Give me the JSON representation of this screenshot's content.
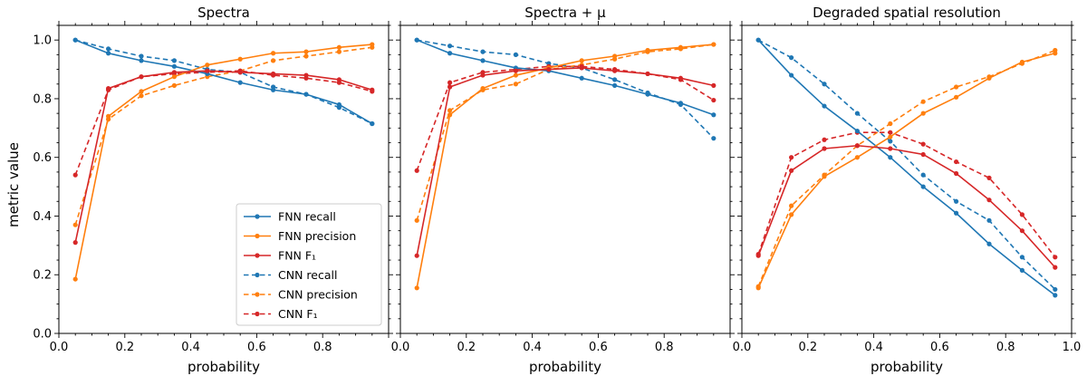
{
  "figure": {
    "ylabel": "metric value"
  },
  "legend": [
    {
      "label": "FNN recall",
      "color": "#1f77b4",
      "dash": false
    },
    {
      "label": "FNN precision",
      "color": "#ff7f0e",
      "dash": false
    },
    {
      "label": "FNN F₁",
      "color": "#d62728",
      "dash": false
    },
    {
      "label": "CNN recall",
      "color": "#1f77b4",
      "dash": true
    },
    {
      "label": "CNN precision",
      "color": "#ff7f0e",
      "dash": true
    },
    {
      "label": "CNN F₁",
      "color": "#d62728",
      "dash": true
    }
  ],
  "chart_data": [
    {
      "type": "line",
      "title": "Spectra",
      "xlabel": "probability",
      "ylabel": "metric value",
      "xlim": [
        0.0,
        1.0
      ],
      "ylim": [
        0.0,
        1.05
      ],
      "xticks": [
        "0.0",
        "0.2",
        "0.4",
        "0.6",
        "0.8"
      ],
      "yticks": [
        "0.0",
        "0.2",
        "0.4",
        "0.6",
        "0.8",
        "1.0"
      ],
      "x": [
        0.05,
        0.15,
        0.25,
        0.35,
        0.45,
        0.55,
        0.65,
        0.75,
        0.85,
        0.95
      ],
      "series": [
        {
          "name": "FNN recall",
          "color": "#1f77b4",
          "dash": false,
          "values": [
            1.0,
            0.955,
            0.93,
            0.91,
            0.885,
            0.855,
            0.83,
            0.815,
            0.78,
            0.715
          ]
        },
        {
          "name": "FNN precision",
          "color": "#ff7f0e",
          "dash": false,
          "values": [
            0.185,
            0.74,
            0.825,
            0.875,
            0.915,
            0.935,
            0.955,
            0.96,
            0.975,
            0.985
          ]
        },
        {
          "name": "FNN F₁",
          "color": "#d62728",
          "dash": false,
          "values": [
            0.31,
            0.835,
            0.875,
            0.89,
            0.895,
            0.89,
            0.885,
            0.88,
            0.865,
            0.83
          ]
        },
        {
          "name": "CNN recall",
          "color": "#1f77b4",
          "dash": true,
          "values": [
            1.0,
            0.97,
            0.945,
            0.93,
            0.9,
            0.89,
            0.84,
            0.815,
            0.77,
            0.715
          ]
        },
        {
          "name": "CNN precision",
          "color": "#ff7f0e",
          "dash": true,
          "values": [
            0.37,
            0.73,
            0.81,
            0.845,
            0.875,
            0.895,
            0.93,
            0.945,
            0.96,
            0.975
          ]
        },
        {
          "name": "CNN F₁",
          "color": "#d62728",
          "dash": true,
          "values": [
            0.54,
            0.83,
            0.875,
            0.885,
            0.89,
            0.895,
            0.88,
            0.87,
            0.855,
            0.825
          ]
        }
      ]
    },
    {
      "type": "line",
      "title": "Spectra + μ",
      "xlabel": "probability",
      "ylabel": "",
      "xlim": [
        0.0,
        1.0
      ],
      "ylim": [
        0.0,
        1.05
      ],
      "xticks": [
        "0.0",
        "0.2",
        "0.4",
        "0.6",
        "0.8"
      ],
      "yticks": [],
      "x": [
        0.05,
        0.15,
        0.25,
        0.35,
        0.45,
        0.55,
        0.65,
        0.75,
        0.85,
        0.95
      ],
      "series": [
        {
          "name": "FNN recall",
          "color": "#1f77b4",
          "dash": false,
          "values": [
            1.0,
            0.955,
            0.93,
            0.905,
            0.895,
            0.87,
            0.845,
            0.815,
            0.785,
            0.745
          ]
        },
        {
          "name": "FNN precision",
          "color": "#ff7f0e",
          "dash": false,
          "values": [
            0.155,
            0.745,
            0.835,
            0.88,
            0.905,
            0.93,
            0.945,
            0.965,
            0.975,
            0.985
          ]
        },
        {
          "name": "FNN F₁",
          "color": "#d62728",
          "dash": false,
          "values": [
            0.265,
            0.84,
            0.88,
            0.895,
            0.9,
            0.905,
            0.895,
            0.885,
            0.87,
            0.845
          ]
        },
        {
          "name": "CNN recall",
          "color": "#1f77b4",
          "dash": true,
          "values": [
            1.0,
            0.98,
            0.96,
            0.95,
            0.92,
            0.905,
            0.865,
            0.82,
            0.78,
            0.665
          ]
        },
        {
          "name": "CNN precision",
          "color": "#ff7f0e",
          "dash": true,
          "values": [
            0.385,
            0.76,
            0.83,
            0.85,
            0.9,
            0.915,
            0.935,
            0.96,
            0.97,
            0.985
          ]
        },
        {
          "name": "CNN F₁",
          "color": "#d62728",
          "dash": true,
          "values": [
            0.555,
            0.855,
            0.89,
            0.9,
            0.91,
            0.91,
            0.9,
            0.885,
            0.865,
            0.795
          ]
        }
      ]
    },
    {
      "type": "line",
      "title": "Degraded spatial resolution",
      "xlabel": "probability",
      "ylabel": "",
      "xlim": [
        0.0,
        1.0
      ],
      "ylim": [
        0.0,
        1.05
      ],
      "xticks": [
        "0.0",
        "0.2",
        "0.4",
        "0.6",
        "0.8",
        "1.0"
      ],
      "yticks": [],
      "x": [
        0.05,
        0.15,
        0.25,
        0.35,
        0.45,
        0.55,
        0.65,
        0.75,
        0.85,
        0.95
      ],
      "series": [
        {
          "name": "FNN recall",
          "color": "#1f77b4",
          "dash": false,
          "values": [
            1.0,
            0.88,
            0.775,
            0.69,
            0.6,
            0.5,
            0.41,
            0.305,
            0.215,
            0.13
          ]
        },
        {
          "name": "FNN precision",
          "color": "#ff7f0e",
          "dash": false,
          "values": [
            0.155,
            0.405,
            0.535,
            0.6,
            0.67,
            0.75,
            0.805,
            0.87,
            0.925,
            0.955
          ]
        },
        {
          "name": "FNN F₁",
          "color": "#d62728",
          "dash": false,
          "values": [
            0.265,
            0.555,
            0.63,
            0.64,
            0.63,
            0.61,
            0.545,
            0.455,
            0.35,
            0.225
          ]
        },
        {
          "name": "CNN recall",
          "color": "#1f77b4",
          "dash": true,
          "values": [
            1.0,
            0.94,
            0.85,
            0.75,
            0.655,
            0.54,
            0.45,
            0.385,
            0.26,
            0.15
          ]
        },
        {
          "name": "CNN precision",
          "color": "#ff7f0e",
          "dash": true,
          "values": [
            0.16,
            0.435,
            0.54,
            0.64,
            0.715,
            0.79,
            0.84,
            0.875,
            0.92,
            0.965
          ]
        },
        {
          "name": "CNN F₁",
          "color": "#d62728",
          "dash": true,
          "values": [
            0.27,
            0.6,
            0.66,
            0.685,
            0.685,
            0.645,
            0.585,
            0.53,
            0.405,
            0.26
          ]
        }
      ]
    }
  ]
}
